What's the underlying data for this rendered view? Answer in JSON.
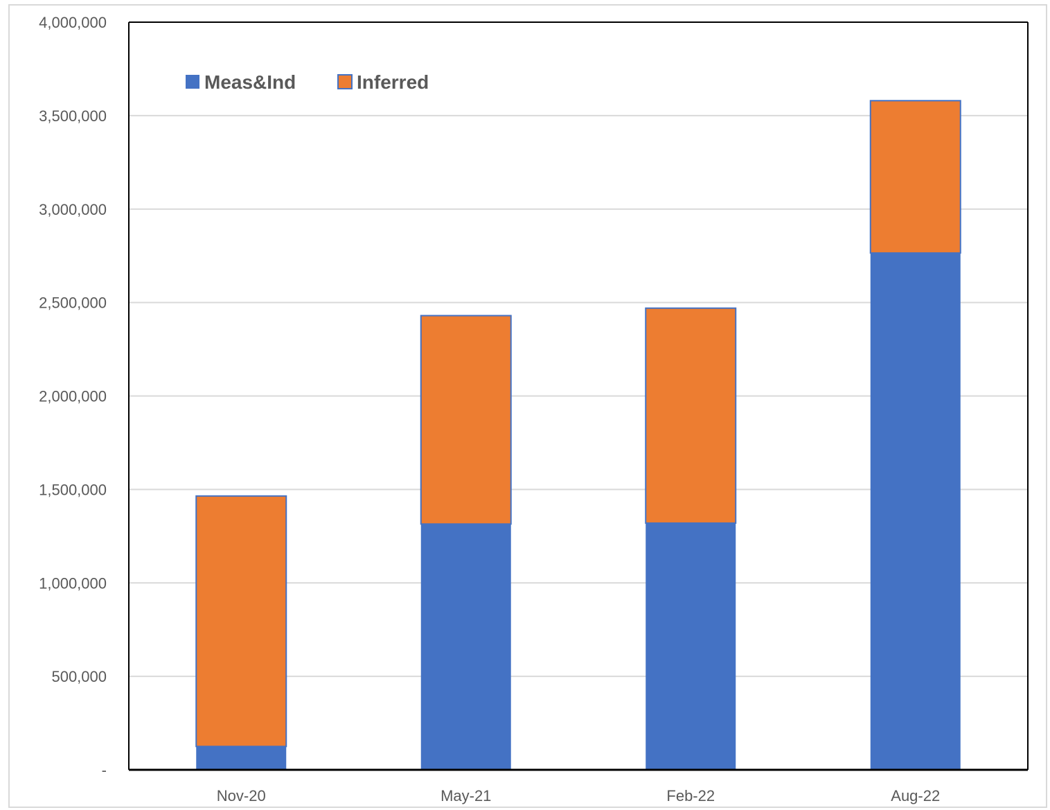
{
  "chart_data": {
    "type": "bar",
    "stacked": true,
    "categories": [
      "Nov-20",
      "May-21",
      "Feb-22",
      "Aug-22"
    ],
    "series": [
      {
        "name": "Meas&Ind",
        "color": "#4472c4",
        "values": [
          125000,
          1315000,
          1320000,
          2765000
        ]
      },
      {
        "name": "Inferred",
        "color": "#ed7d31",
        "values": [
          1340000,
          1115000,
          1150000,
          815000
        ]
      }
    ],
    "ylim": [
      0,
      4000000
    ],
    "yticks": [
      0,
      500000,
      1000000,
      1500000,
      2000000,
      2500000,
      3000000,
      3500000,
      4000000
    ],
    "ytick_labels": [
      "-",
      "500,000",
      "1,000,000",
      "1,500,000",
      "2,000,000",
      "2,500,000",
      "3,000,000",
      "3,500,000",
      "4,000,000"
    ],
    "title": "",
    "xlabel": "",
    "ylabel": "",
    "grid": true,
    "legend_position": "top-left",
    "gridline_color": "#d9d9d9",
    "axis_color": "#000000"
  }
}
